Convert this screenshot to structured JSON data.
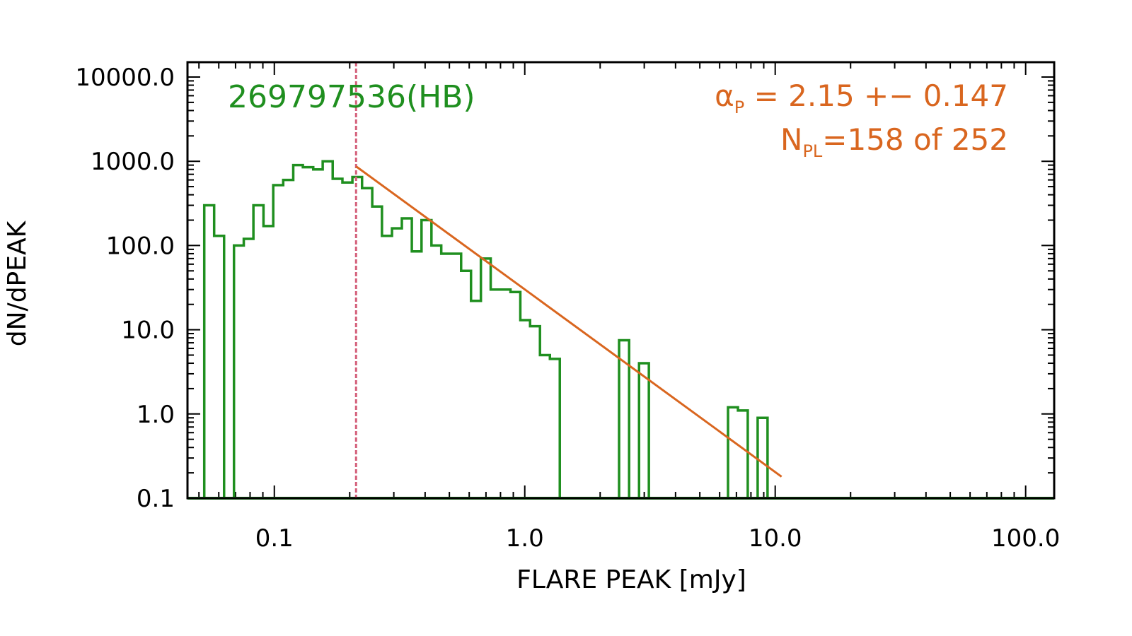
{
  "chart_data": {
    "type": "line",
    "subtype": "step-histogram",
    "title": "",
    "xlabel": "FLARE PEAK [mJy]",
    "ylabel": "dN/dPEAK",
    "xscale": "log",
    "yscale": "log",
    "xlim": [
      0.045,
      130
    ],
    "ylim": [
      0.1,
      15000
    ],
    "grid": false,
    "x_ticks": [
      {
        "value": 0.1,
        "label": "0.1"
      },
      {
        "value": 1,
        "label": "1.0"
      },
      {
        "value": 10,
        "label": "10.0"
      },
      {
        "value": 100,
        "label": "100.0"
      }
    ],
    "y_ticks": [
      {
        "value": 0.1,
        "label": "0.1"
      },
      {
        "value": 1,
        "label": "1.0"
      },
      {
        "value": 10,
        "label": "10.0"
      },
      {
        "value": 100,
        "label": "100.0"
      },
      {
        "value": 1000,
        "label": "1000.0"
      },
      {
        "value": 10000,
        "label": "10000.0"
      }
    ],
    "histogram": {
      "color": "#1f8f1f",
      "edges": [
        0.0525,
        0.0575,
        0.063,
        0.069,
        0.0755,
        0.0825,
        0.0905,
        0.099,
        0.1085,
        0.119,
        0.13,
        0.143,
        0.156,
        0.171,
        0.187,
        0.205,
        0.224,
        0.246,
        0.269,
        0.295,
        0.323,
        0.354,
        0.387,
        0.424,
        0.464,
        0.508,
        0.557,
        0.61,
        0.668,
        0.731,
        0.8,
        0.877,
        0.96,
        1.05,
        1.15,
        1.26,
        1.38,
        1.51,
        1.655,
        1.815,
        1.985,
        2.175,
        2.38,
        2.61,
        2.86,
        3.13,
        3.43,
        3.76,
        4.11,
        4.51,
        4.93,
        5.4,
        5.92,
        6.48,
        7.1,
        7.77,
        8.51,
        9.32,
        10.2
      ],
      "counts": [
        300,
        130,
        0.1,
        100,
        120,
        300,
        170,
        520,
        600,
        900,
        850,
        800,
        1000,
        620,
        560,
        650,
        480,
        290,
        130,
        160,
        210,
        85,
        200,
        100,
        80,
        80,
        50,
        22,
        70,
        30,
        30,
        28,
        13,
        11,
        5,
        4.5,
        0.1,
        0.1,
        0.1,
        0.1,
        0.1,
        0.1,
        7.5,
        0.1,
        4,
        0.1,
        0.1,
        0.1,
        0.1,
        0.1,
        0.1,
        0.1,
        0.1,
        1.2,
        1.1,
        0.1,
        0.9,
        0.1
      ],
      "baseline_xrange": [
        0.045,
        130
      ]
    },
    "threshold": {
      "x": 0.212,
      "color": "#d4607a"
    },
    "fit": {
      "color": "#d9661f",
      "x": [
        0.212,
        10.6
      ],
      "y": [
        870,
        0.18
      ]
    },
    "annotations": {
      "star_id": "269797536(HB)",
      "star_color": "#1f8f1f",
      "alpha_symbol": "α",
      "alpha_sub": "P",
      "alpha_text": " = 2.15 +− 0.147",
      "n_symbol": "N",
      "n_sub": "PL",
      "n_text": "=158 of 252",
      "fit_text_color": "#d9661f"
    }
  }
}
